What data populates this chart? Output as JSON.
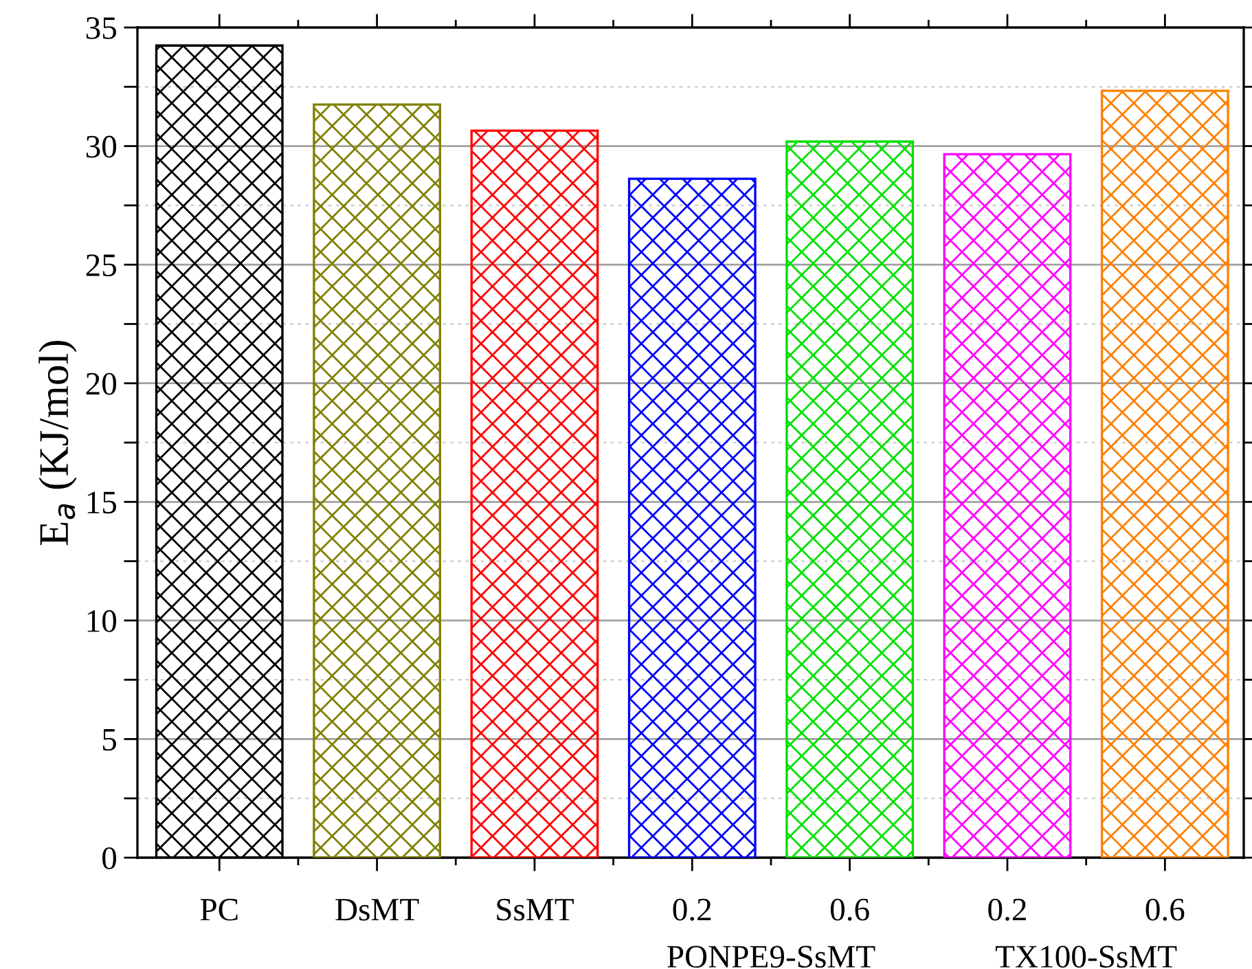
{
  "chart_data": {
    "type": "bar",
    "ylabel": "E$_{a}$ (KJ/mol)",
    "categories": [
      "PC",
      "DsMT",
      "SsMT",
      "0.2",
      "0.6",
      "0.2",
      "0.6"
    ],
    "values": [
      34.24,
      31.75,
      30.65,
      28.62,
      30.19,
      29.66,
      32.33
    ],
    "colors": [
      "#000000",
      "#808000",
      "#ff0000",
      "#0000ff",
      "#00e000",
      "#ff00ff",
      "#ff8000"
    ],
    "ylim": [
      0,
      35
    ],
    "yticks": [
      0,
      {
        "value": 2.5,
        "label": null
      },
      5,
      {
        "value": 7.5,
        "label": null
      },
      10,
      {
        "value": 12.5,
        "label": null
      },
      15,
      {
        "value": 17.5,
        "label": null
      },
      20,
      {
        "value": 22.5,
        "label": null
      },
      25,
      {
        "value": 27.5,
        "label": null
      },
      30,
      {
        "value": 32.5,
        "label": null
      },
      35
    ],
    "grid": "y",
    "annotations": [
      "PONPE9-SsMT",
      "TX100-SsMT"
    ]
  }
}
